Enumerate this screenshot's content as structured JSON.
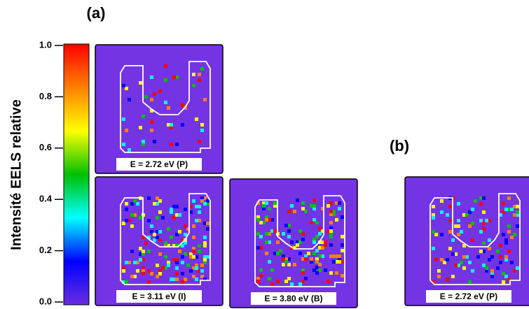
{
  "chart_data": {
    "type": "heatmap",
    "ylabel": "Intensité EELS relative",
    "ylim": [
      0,
      1
    ],
    "yticks": [
      {
        "value": 0,
        "label": "0.0"
      },
      {
        "value": 0.2,
        "label": "0.2"
      },
      {
        "value": 0.4,
        "label": "0.4"
      },
      {
        "value": 0.6,
        "label": "0.6"
      },
      {
        "value": 0.8,
        "label": "0.8"
      },
      {
        "value": 1,
        "label": "1.0"
      }
    ],
    "colorscale": [
      "#6a2ce0",
      "#0000ff",
      "#00ffff",
      "#00c000",
      "#ffff00",
      "#ff8000",
      "#ff0000"
    ],
    "panel_labels": [
      "(a)",
      "(b)"
    ],
    "maps": [
      {
        "title": "E = 2.72 eV (P)"
      },
      {
        "title": "E = 3.11 eV (I)"
      },
      {
        "title": "E = 3.80 eV (B)"
      },
      {
        "title": "E = 2.72 eV (P)"
      }
    ]
  }
}
